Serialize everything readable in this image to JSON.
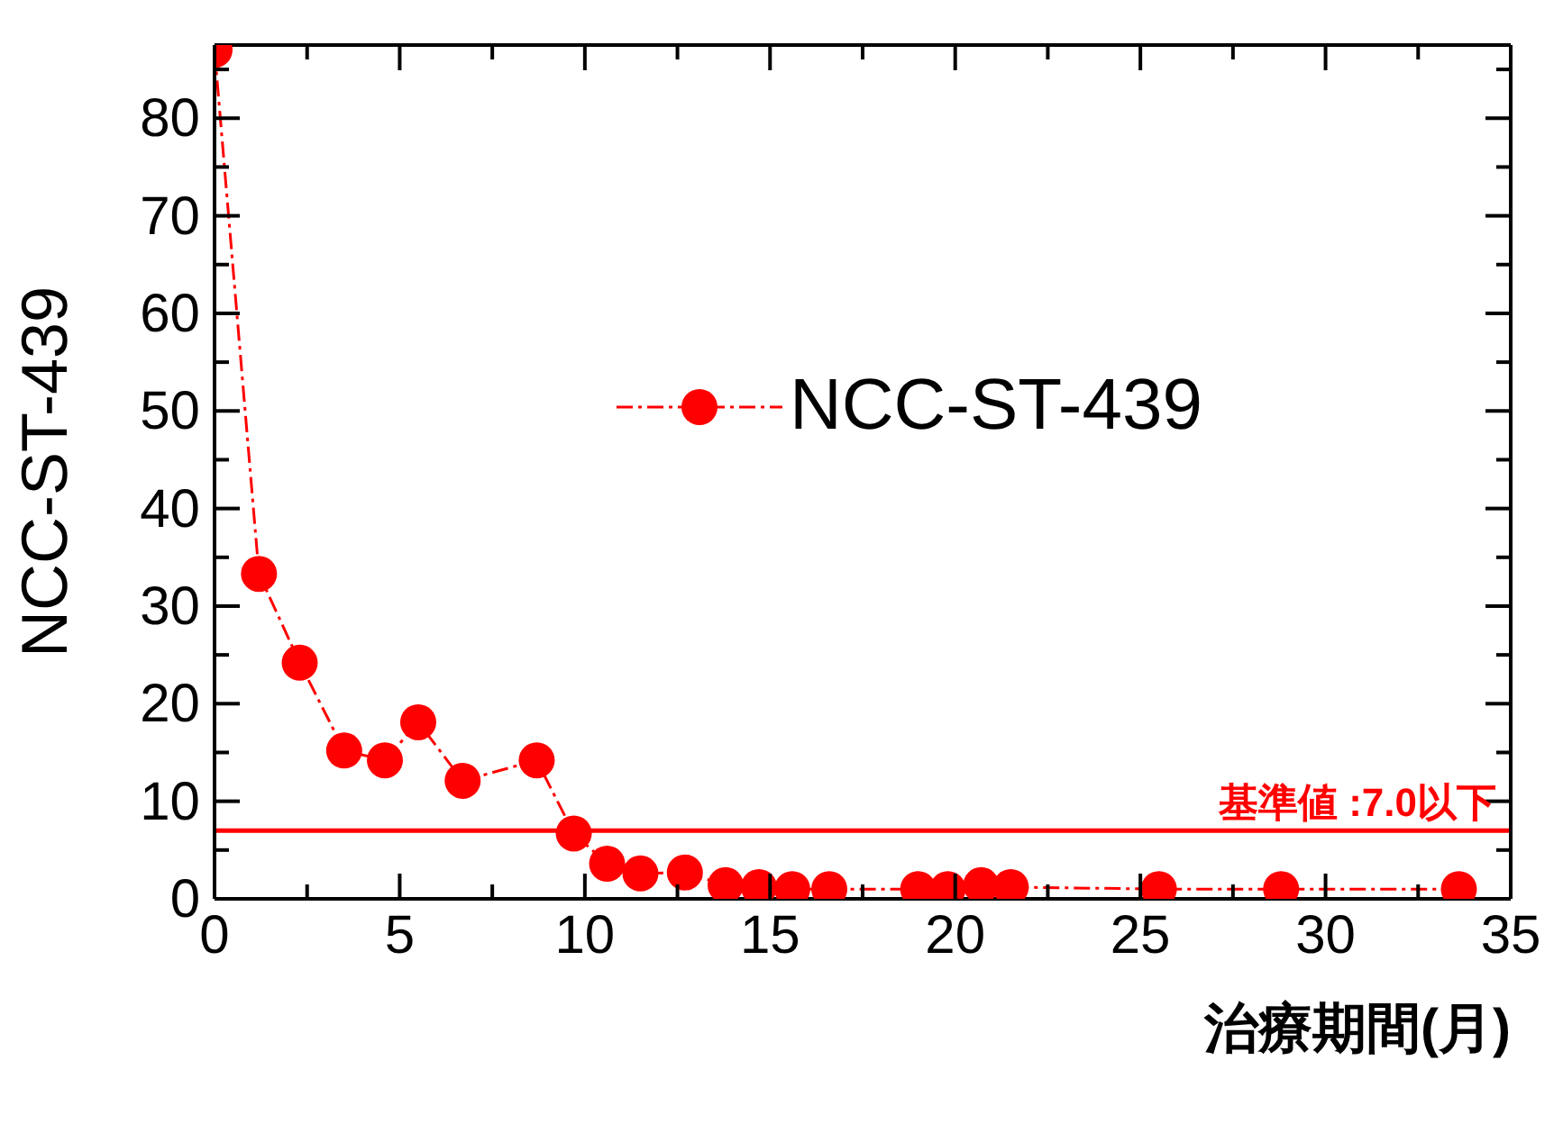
{
  "chart_data": {
    "type": "line",
    "xlabel": "治療期間(月)",
    "ylabel": "NCC-ST-439",
    "xlim": [
      0,
      35
    ],
    "xticks": [
      0,
      {
        "value": 2.5,
        "label": null
      },
      5,
      {
        "value": 7.5,
        "label": null
      },
      10,
      {
        "value": 12.5,
        "label": null
      },
      15,
      {
        "value": 17.5,
        "label": null
      },
      20,
      {
        "value": 22.5,
        "label": null
      },
      25,
      {
        "value": 27.5,
        "label": null
      },
      30,
      {
        "value": 32.5,
        "label": null
      },
      35
    ],
    "ylim": [
      0,
      87.5
    ],
    "yticks": [
      0,
      {
        "value": 5,
        "label": null
      },
      10,
      {
        "value": 15,
        "label": null
      },
      20,
      {
        "value": 25,
        "label": null
      },
      30,
      {
        "value": 35,
        "label": null
      },
      40,
      {
        "value": 45,
        "label": null
      },
      50,
      {
        "value": 55,
        "label": null
      },
      60,
      {
        "value": 65,
        "label": null
      },
      70,
      {
        "value": 75,
        "label": null
      },
      80,
      {
        "value": 85,
        "label": null
      }
    ],
    "x": [
      0,
      1.2,
      2.3,
      3.5,
      4.6,
      5.5,
      6.7,
      8.7,
      9.7,
      10.6,
      11.5,
      12.7,
      13.8,
      14.7,
      15.6,
      16.6,
      19.0,
      19.8,
      20.7,
      21.5,
      25.5,
      28.8,
      33.6
    ],
    "series": [
      {
        "name": "NCC-ST-439",
        "color": "#ff0000",
        "values": [
          87,
          33.3,
          24.2,
          15.2,
          14.2,
          18.1,
          12.1,
          14.2,
          6.7,
          3.6,
          2.6,
          2.7,
          1.4,
          1.2,
          1.0,
          1.0,
          1.0,
          1.0,
          1.4,
          1.2,
          1.0,
          1.0,
          1.0
        ]
      }
    ],
    "ref_lines": [
      {
        "axis": "y",
        "value": 7.0,
        "label": "基準値 :7.0以下",
        "color": "#ff0000",
        "line_style": "solid"
      }
    ],
    "marker": "circle",
    "line_style": "dashed",
    "grid": false,
    "legend": "right"
  }
}
